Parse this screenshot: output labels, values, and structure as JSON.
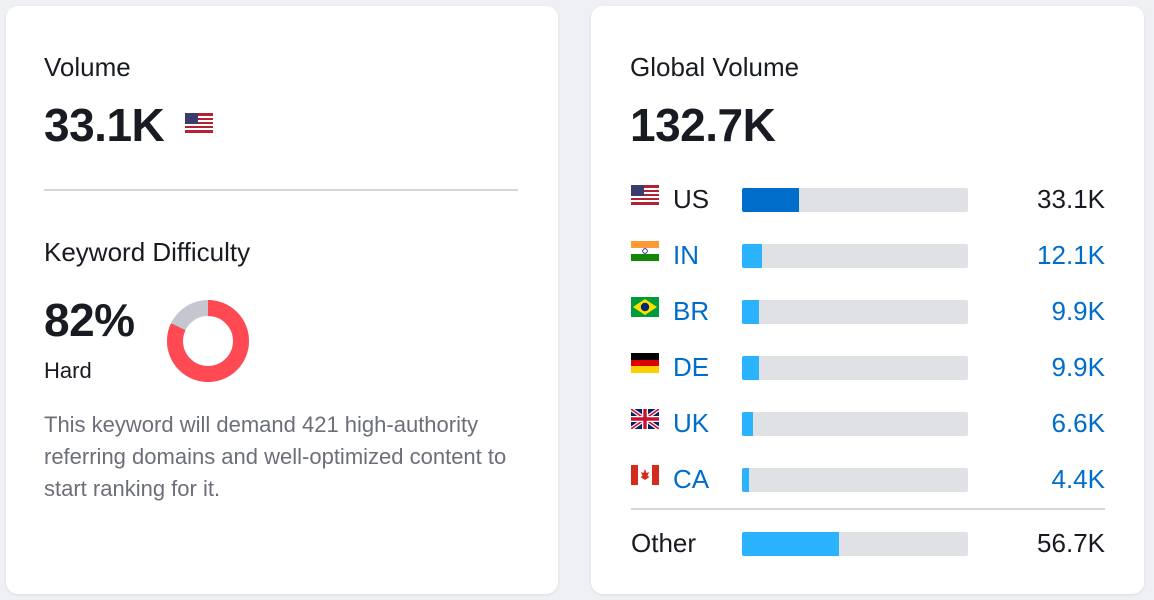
{
  "volume": {
    "label": "Volume",
    "value": "33.1K",
    "flag_icon": "us-flag-icon"
  },
  "keyword_difficulty": {
    "label": "Keyword Difficulty",
    "value": "82%",
    "percent": 82,
    "level": "Hard",
    "description": "This keyword will demand 421 high-authority referring domains and well-optimized content to start ranking for it.",
    "color_hard": "#ff4953",
    "color_rest": "#c4c7cf"
  },
  "global_volume": {
    "label": "Global Volume",
    "value": "132.7K",
    "countries": [
      {
        "code": "US",
        "value": "33.1K",
        "share": 0.25,
        "flag_icon": "us-flag-icon",
        "highlight": true
      },
      {
        "code": "IN",
        "value": "12.1K",
        "share": 0.09,
        "flag_icon": "india-flag-icon",
        "highlight": false
      },
      {
        "code": "BR",
        "value": "9.9K",
        "share": 0.075,
        "flag_icon": "brazil-flag-icon",
        "highlight": false
      },
      {
        "code": "DE",
        "value": "9.9K",
        "share": 0.075,
        "flag_icon": "germany-flag-icon",
        "highlight": false
      },
      {
        "code": "UK",
        "value": "6.6K",
        "share": 0.05,
        "flag_icon": "uk-flag-icon",
        "highlight": false
      },
      {
        "code": "CA",
        "value": "4.4K",
        "share": 0.033,
        "flag_icon": "canada-flag-icon",
        "highlight": false
      }
    ],
    "other": {
      "label": "Other",
      "value": "56.7K",
      "share": 0.43
    },
    "colors": {
      "bar_primary": "#006dca",
      "bar_secondary": "#2bb3ff",
      "link": "#006dca"
    }
  }
}
